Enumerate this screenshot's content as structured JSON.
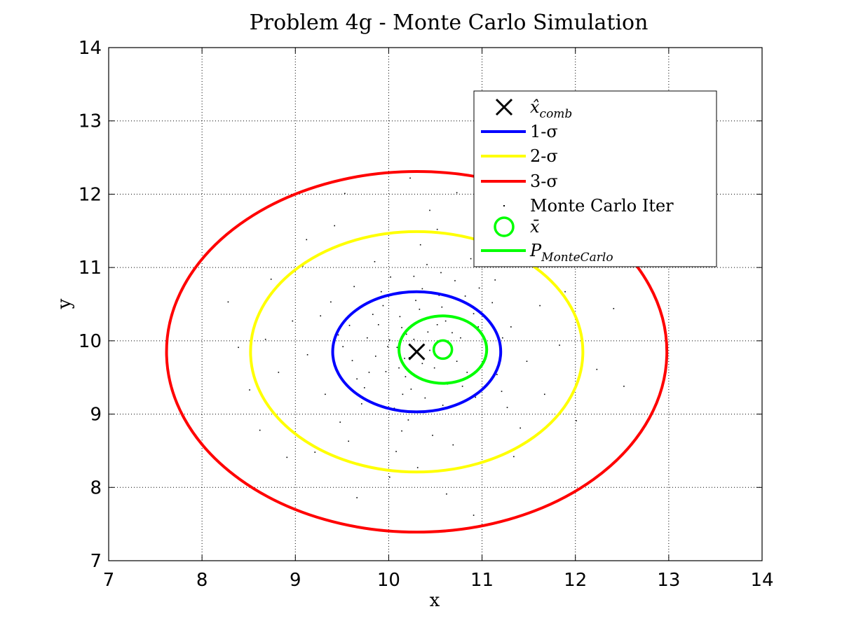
{
  "chart_data": {
    "type": "scatter",
    "title": "Problem 4g - Monte Carlo Simulation",
    "xlabel": "x",
    "ylabel": "y",
    "xlim": [
      7,
      14
    ],
    "ylim": [
      7,
      14
    ],
    "xticks": [
      "7",
      "8",
      "9",
      "10",
      "11",
      "12",
      "13",
      "14"
    ],
    "yticks": [
      "7",
      "8",
      "9",
      "10",
      "11",
      "12",
      "13",
      "14"
    ],
    "grid": true,
    "legend_position": "top-right",
    "legend": [
      {
        "id": "xcomb",
        "base": "x̂",
        "sub": "comb",
        "marker": "x",
        "color": "#000000"
      },
      {
        "id": "sigma1",
        "base": "1-σ",
        "sub": "",
        "marker": "line",
        "color": "#0000ff"
      },
      {
        "id": "sigma2",
        "base": "2-σ",
        "sub": "",
        "marker": "line",
        "color": "#ffff00"
      },
      {
        "id": "sigma3",
        "base": "3-σ",
        "sub": "",
        "marker": "line",
        "color": "#ff0000"
      },
      {
        "id": "mc",
        "base": "Monte Carlo Iter",
        "sub": "",
        "marker": "dot",
        "color": "#000000"
      },
      {
        "id": "xbar",
        "base": "x̄",
        "sub": "",
        "marker": "o",
        "color": "#00ff00"
      },
      {
        "id": "pmc",
        "base": "P",
        "sub": "MonteCarlo",
        "marker": "line",
        "color": "#00ff00"
      }
    ],
    "x_hat_comb": [
      10.3,
      9.85
    ],
    "x_bar": [
      10.58,
      9.88
    ],
    "ellipses": [
      {
        "name": "1-σ",
        "cx": 10.3,
        "cy": 9.85,
        "rx": 0.9,
        "ry": 0.82,
        "color": "#0000ff"
      },
      {
        "name": "2-σ",
        "cx": 10.3,
        "cy": 9.85,
        "rx": 1.78,
        "ry": 1.64,
        "color": "#ffff00"
      },
      {
        "name": "3-σ",
        "cx": 10.3,
        "cy": 9.85,
        "rx": 2.68,
        "ry": 2.46,
        "color": "#ff0000"
      },
      {
        "name": "P_MonteCarlo",
        "cx": 10.58,
        "cy": 9.88,
        "rx": 0.47,
        "ry": 0.46,
        "color": "#00ff00"
      }
    ],
    "monte_carlo_points": [
      [
        10.42,
        10.12
      ],
      [
        10.11,
        9.63
      ],
      [
        10.77,
        10.04
      ],
      [
        9.86,
        9.79
      ],
      [
        10.63,
        9.41
      ],
      [
        10.29,
        10.55
      ],
      [
        9.58,
        10.21
      ],
      [
        11.05,
        9.88
      ],
      [
        10.38,
        9.02
      ],
      [
        9.94,
        10.48
      ],
      [
        10.82,
        10.61
      ],
      [
        10.15,
        9.27
      ],
      [
        9.42,
        9.66
      ],
      [
        11.31,
        10.19
      ],
      [
        10.56,
        10.93
      ],
      [
        9.71,
        9.14
      ],
      [
        10.93,
        9.23
      ],
      [
        10.02,
        10.87
      ],
      [
        9.27,
        10.34
      ],
      [
        11.48,
        9.72
      ],
      [
        10.47,
        8.71
      ],
      [
        9.63,
        10.74
      ],
      [
        10.88,
        11.12
      ],
      [
        10.21,
        8.92
      ],
      [
        9.13,
        9.81
      ],
      [
        11.62,
        10.48
      ],
      [
        10.69,
        8.58
      ],
      [
        9.48,
        8.89
      ],
      [
        10.34,
        11.31
      ],
      [
        11.27,
        9.09
      ],
      [
        8.97,
        10.27
      ],
      [
        9.85,
        11.08
      ],
      [
        11.14,
        10.83
      ],
      [
        10.08,
        8.49
      ],
      [
        9.32,
        9.27
      ],
      [
        11.83,
        9.94
      ],
      [
        10.52,
        11.52
      ],
      [
        9.57,
        8.63
      ],
      [
        8.82,
        9.57
      ],
      [
        11.41,
        8.81
      ],
      [
        10.27,
        10.02
      ],
      [
        9.99,
        9.92
      ],
      [
        10.61,
        10.27
      ],
      [
        10.12,
        10.33
      ],
      [
        10.49,
        9.63
      ],
      [
        9.77,
        10.04
      ],
      [
        10.73,
        9.72
      ],
      [
        10.18,
        9.51
      ],
      [
        10.91,
        10.37
      ],
      [
        9.66,
        9.48
      ],
      [
        10.36,
        10.71
      ],
      [
        9.89,
        10.22
      ],
      [
        11.16,
        9.54
      ],
      [
        10.57,
        10.46
      ],
      [
        9.51,
        9.92
      ],
      [
        10.24,
        9.34
      ],
      [
        10.84,
        9.57
      ],
      [
        10.05,
        10.63
      ],
      [
        9.38,
        10.53
      ],
      [
        11.22,
        10.04
      ],
      [
        10.41,
        11.04
      ],
      [
        9.74,
        9.36
      ],
      [
        10.97,
        10.72
      ],
      [
        10.14,
        8.77
      ],
      [
        8.68,
        10.02
      ],
      [
        12.05,
        10.14
      ],
      [
        10.44,
        11.78
      ],
      [
        9.21,
        8.48
      ],
      [
        11.67,
        9.27
      ],
      [
        9.08,
        11.02
      ],
      [
        11.56,
        11.06
      ],
      [
        10.31,
        8.27
      ],
      [
        8.51,
        9.33
      ],
      [
        12.23,
        9.61
      ],
      [
        10.73,
        12.02
      ],
      [
        9.42,
        11.57
      ],
      [
        11.89,
        10.67
      ],
      [
        10.01,
        8.14
      ],
      [
        8.74,
        10.84
      ],
      [
        11.34,
        8.42
      ],
      [
        10.62,
        7.91
      ],
      [
        9.12,
        11.38
      ],
      [
        12.41,
        10.44
      ],
      [
        8.39,
        9.91
      ],
      [
        11.07,
        11.74
      ],
      [
        9.66,
        7.86
      ],
      [
        12.01,
        8.91
      ],
      [
        8.91,
        8.41
      ],
      [
        10.23,
        12.22
      ],
      [
        11.74,
        11.58
      ],
      [
        8.28,
        10.53
      ],
      [
        12.52,
        9.38
      ],
      [
        9.53,
        12.01
      ],
      [
        10.91,
        7.62
      ],
      [
        8.62,
        8.78
      ],
      [
        12.34,
        11.03
      ],
      [
        10.49,
        9.81
      ],
      [
        10.19,
        10.09
      ],
      [
        10.66,
        9.96
      ],
      [
        9.97,
        9.58
      ],
      [
        10.54,
        10.62
      ],
      [
        9.83,
        10.36
      ],
      [
        10.39,
        9.22
      ],
      [
        11.01,
        9.69
      ],
      [
        10.27,
        10.88
      ],
      [
        9.61,
        9.73
      ],
      [
        10.79,
        9.38
      ],
      [
        10.06,
        9.08
      ],
      [
        9.92,
        10.67
      ],
      [
        11.11,
        10.52
      ],
      [
        10.47,
        9.44
      ],
      [
        9.46,
        10.08
      ],
      [
        10.71,
        10.82
      ],
      [
        10.17,
        9.76
      ],
      [
        9.79,
        9.57
      ],
      [
        10.96,
        10.19
      ],
      [
        10.33,
        10.43
      ],
      [
        9.69,
        10.46
      ],
      [
        11.21,
        9.31
      ],
      [
        10.58,
        9.12
      ],
      [
        10.36,
        9.69
      ],
      [
        10.14,
        10.18
      ],
      [
        10.52,
        10.22
      ],
      [
        10.01,
        10.01
      ],
      [
        10.44,
        9.87
      ],
      [
        10.22,
        9.77
      ],
      [
        10.68,
        10.11
      ],
      [
        10.09,
        9.91
      ]
    ]
  }
}
